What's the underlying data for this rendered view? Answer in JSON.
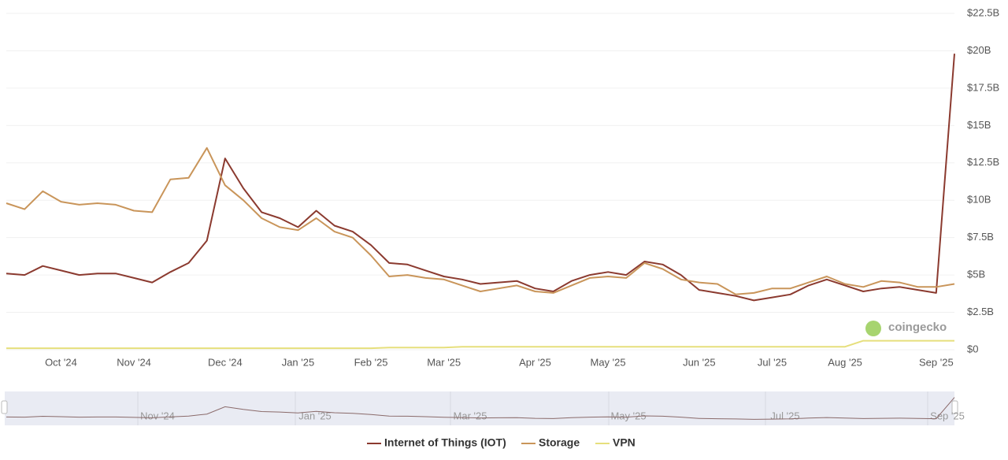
{
  "chart_data": {
    "type": "line",
    "categories": [
      null,
      null,
      null,
      "Oct '24",
      null,
      null,
      null,
      "Nov '24",
      null,
      null,
      null,
      null,
      "Dec '24",
      null,
      null,
      null,
      "Jan '25",
      null,
      null,
      null,
      "Feb '25",
      null,
      null,
      null,
      "Mar '25",
      null,
      null,
      null,
      null,
      "Apr '25",
      null,
      null,
      null,
      "May '25",
      null,
      null,
      null,
      null,
      "Jun '25",
      null,
      null,
      null,
      "Jul '25",
      null,
      null,
      null,
      "Aug '25",
      null,
      null,
      null,
      null,
      "Sep '25",
      null
    ],
    "series": [
      {
        "name": "Internet of Things (IOT)",
        "color": "#8b3a2f",
        "values": [
          5.1,
          5.0,
          5.6,
          5.3,
          5.0,
          5.1,
          5.1,
          4.8,
          4.5,
          5.2,
          5.8,
          7.3,
          12.8,
          10.8,
          9.2,
          8.8,
          8.2,
          9.3,
          8.3,
          7.9,
          7.0,
          5.8,
          5.7,
          5.3,
          4.9,
          4.7,
          4.4,
          4.5,
          4.6,
          4.1,
          3.9,
          4.6,
          5.0,
          5.2,
          5.0,
          5.9,
          5.7,
          5.0,
          4.0,
          3.8,
          3.6,
          3.3,
          3.5,
          3.7,
          4.3,
          4.7,
          4.3,
          3.9,
          4.1,
          4.2,
          4.0,
          3.8,
          19.8
        ]
      },
      {
        "name": "Storage",
        "color": "#c9955a",
        "values": [
          9.8,
          9.4,
          10.6,
          9.9,
          9.7,
          9.8,
          9.7,
          9.3,
          9.2,
          11.4,
          11.5,
          13.5,
          11.0,
          10.0,
          8.8,
          8.2,
          8.0,
          8.8,
          7.9,
          7.5,
          6.3,
          4.9,
          5.0,
          4.8,
          4.7,
          4.3,
          3.9,
          4.1,
          4.3,
          3.9,
          3.8,
          4.3,
          4.8,
          4.9,
          4.8,
          5.8,
          5.4,
          4.7,
          4.5,
          4.4,
          3.7,
          3.8,
          4.1,
          4.1,
          4.5,
          4.9,
          4.4,
          4.2,
          4.6,
          4.5,
          4.2,
          4.2,
          4.4
        ]
      },
      {
        "name": "VPN",
        "color": "#e6df7c",
        "values": [
          0.1,
          0.1,
          0.1,
          0.1,
          0.1,
          0.1,
          0.1,
          0.1,
          0.1,
          0.1,
          0.1,
          0.1,
          0.1,
          0.1,
          0.1,
          0.1,
          0.1,
          0.1,
          0.1,
          0.1,
          0.1,
          0.15,
          0.15,
          0.15,
          0.15,
          0.2,
          0.2,
          0.2,
          0.2,
          0.2,
          0.2,
          0.2,
          0.2,
          0.2,
          0.2,
          0.2,
          0.2,
          0.2,
          0.2,
          0.2,
          0.2,
          0.2,
          0.2,
          0.2,
          0.2,
          0.2,
          0.2,
          0.6,
          0.6,
          0.6,
          0.6,
          0.6,
          0.6
        ]
      }
    ],
    "ylim": [
      0,
      22.5
    ],
    "yticks": [
      {
        "value": 0,
        "label": "$0"
      },
      {
        "value": 2.5,
        "label": "$2.5B"
      },
      {
        "value": 5,
        "label": "$5B"
      },
      {
        "value": 7.5,
        "label": "$7.5B"
      },
      {
        "value": 10,
        "label": "$10B"
      },
      {
        "value": 12.5,
        "label": "$12.5B"
      },
      {
        "value": 15,
        "label": "$15B"
      },
      {
        "value": 17.5,
        "label": "$17.5B"
      },
      {
        "value": 20,
        "label": "$20B"
      },
      {
        "value": 22.5,
        "label": "$22.5B"
      }
    ],
    "grid": true,
    "watermark": "coingecko",
    "navigator_labels": [
      "Nov '24",
      "Jan '25",
      "Mar '25",
      "May '25",
      "Jul '25",
      "Sep '25"
    ]
  }
}
